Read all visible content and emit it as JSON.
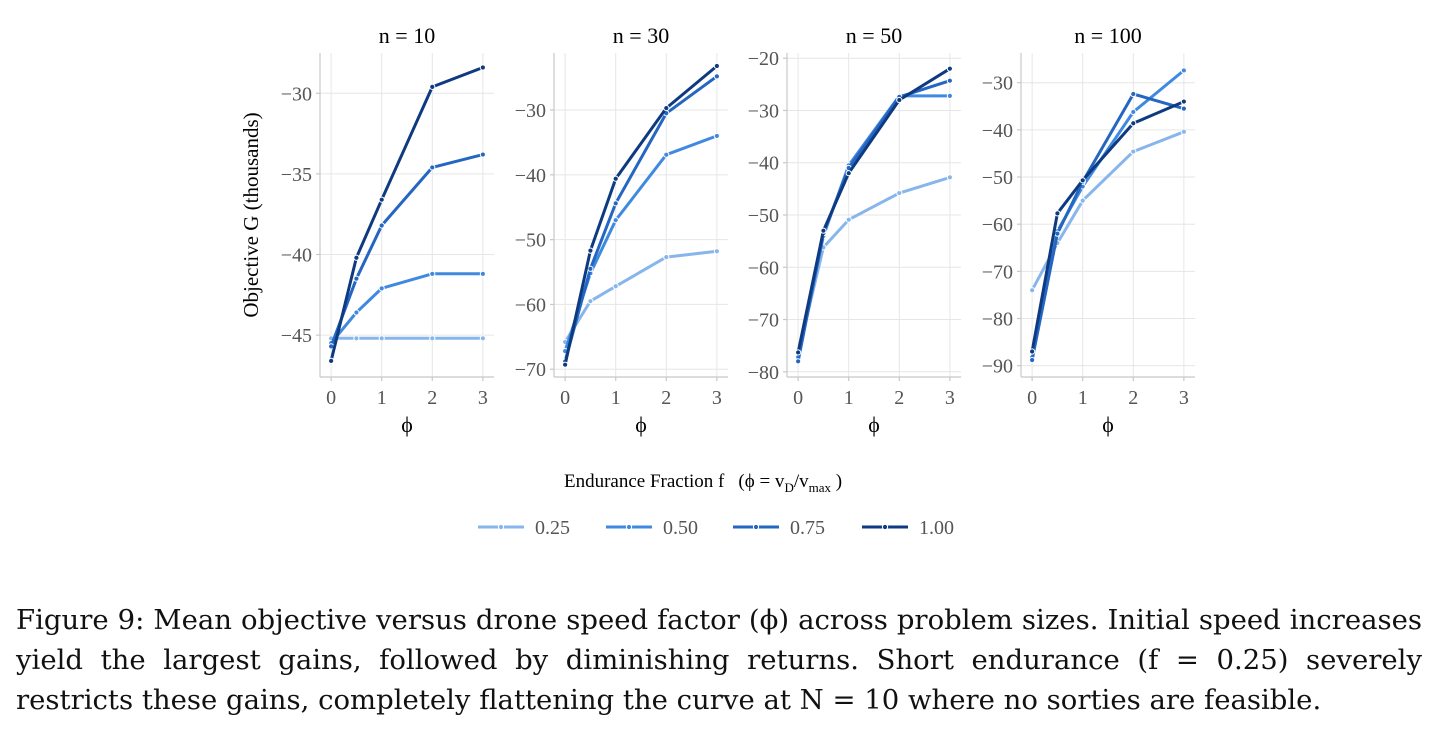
{
  "figure": {
    "ylabel": "Objective G  (thousands)",
    "legend": {
      "title": "Endurance Fraction f",
      "note": "(ϕ = v",
      "note_sub1": "D",
      "note_mid": "/v",
      "note_sub2": "max",
      "note_end": " )"
    },
    "caption": "Figure 9: Mean objective versus drone speed factor (ϕ) across problem sizes. Initial speed increases yield the largest gains, followed by diminishing returns. Short endurance (f = 0.25) severely restricts these gains, completely flattening the curve at N = 10 where no sorties are feasible."
  },
  "colors": {
    "0.25": "#86b6eb",
    "0.50": "#3f8ae0",
    "0.75": "#2466c2",
    "1.00": "#0e3a80",
    "grid": "#e6e6e6",
    "axis": "#c8c8c8",
    "tick": "#555555"
  },
  "chart_data": [
    {
      "type": "line",
      "title": "n = 10",
      "xlabel": "ϕ",
      "x": [
        0,
        0.5,
        1,
        2,
        3
      ],
      "xticks": [
        0,
        1,
        2,
        3
      ],
      "yticks": [
        -45,
        -40,
        -35,
        -30
      ],
      "ylim": [
        -47.6,
        -27.5
      ],
      "xlim": [
        -0.22,
        3.22
      ],
      "series": [
        {
          "name": "0.25",
          "values": [
            -45.2,
            -45.2,
            -45.2,
            -45.2,
            -45.2
          ]
        },
        {
          "name": "0.50",
          "values": [
            -45.5,
            -43.6,
            -42.1,
            -41.2,
            -41.2
          ]
        },
        {
          "name": "0.75",
          "values": [
            -45.7,
            -41.5,
            -38.2,
            -34.6,
            -33.8
          ]
        },
        {
          "name": "1.00",
          "values": [
            -46.6,
            -40.2,
            -36.6,
            -29.6,
            -28.4
          ]
        }
      ]
    },
    {
      "type": "line",
      "title": "n = 30",
      "xlabel": "ϕ",
      "x": [
        0,
        0.5,
        1,
        2,
        3
      ],
      "xticks": [
        0,
        1,
        2,
        3
      ],
      "yticks": [
        -70,
        -60,
        -50,
        -40,
        -30
      ],
      "ylim": [
        -71.2,
        -21.2
      ],
      "xlim": [
        -0.22,
        3.22
      ],
      "series": [
        {
          "name": "0.25",
          "values": [
            -65.8,
            -59.5,
            -57.2,
            -52.7,
            -51.8
          ]
        },
        {
          "name": "0.50",
          "values": [
            -67.2,
            -55.2,
            -47.0,
            -36.9,
            -34.0
          ]
        },
        {
          "name": "0.75",
          "values": [
            -68.8,
            -54.5,
            -44.4,
            -30.5,
            -24.8
          ]
        },
        {
          "name": "1.00",
          "values": [
            -69.3,
            -51.7,
            -40.6,
            -29.7,
            -23.2
          ]
        }
      ]
    },
    {
      "type": "line",
      "title": "n = 50",
      "xlabel": "ϕ",
      "x": [
        0,
        0.5,
        1,
        2,
        3
      ],
      "xticks": [
        0,
        1,
        2,
        3
      ],
      "yticks": [
        -80,
        -70,
        -60,
        -50,
        -40,
        -30,
        -20
      ],
      "ylim": [
        -81.0,
        -19.0
      ],
      "xlim": [
        -0.22,
        3.22
      ],
      "series": [
        {
          "name": "0.25",
          "values": [
            -76.5,
            -56.2,
            -50.9,
            -45.8,
            -42.8
          ]
        },
        {
          "name": "0.50",
          "values": [
            -77.2,
            -54.0,
            -40.5,
            -27.2,
            -27.2
          ]
        },
        {
          "name": "0.75",
          "values": [
            -78.0,
            -53.5,
            -41.0,
            -27.4,
            -24.3
          ]
        },
        {
          "name": "1.00",
          "values": [
            -76.3,
            -53.0,
            -42.0,
            -28.0,
            -22.0
          ]
        }
      ]
    },
    {
      "type": "line",
      "title": "n = 100",
      "xlabel": "ϕ",
      "x": [
        0,
        0.5,
        1,
        2,
        3
      ],
      "xticks": [
        0,
        1,
        2,
        3
      ],
      "yticks": [
        -90,
        -80,
        -70,
        -60,
        -50,
        -40,
        -30
      ],
      "ylim": [
        -92.4,
        -23.7
      ],
      "xlim": [
        -0.22,
        3.22
      ],
      "series": [
        {
          "name": "0.25",
          "values": [
            -74.0,
            -64.0,
            -55.0,
            -44.6,
            -40.4
          ]
        },
        {
          "name": "0.50",
          "values": [
            -88.2,
            -61.5,
            -52.0,
            -36.2,
            -27.4
          ]
        },
        {
          "name": "0.75",
          "values": [
            -88.8,
            -62.0,
            -51.0,
            -32.4,
            -35.5
          ]
        },
        {
          "name": "1.00",
          "values": [
            -87.0,
            -57.7,
            -50.7,
            -38.6,
            -34.0
          ]
        }
      ]
    }
  ]
}
